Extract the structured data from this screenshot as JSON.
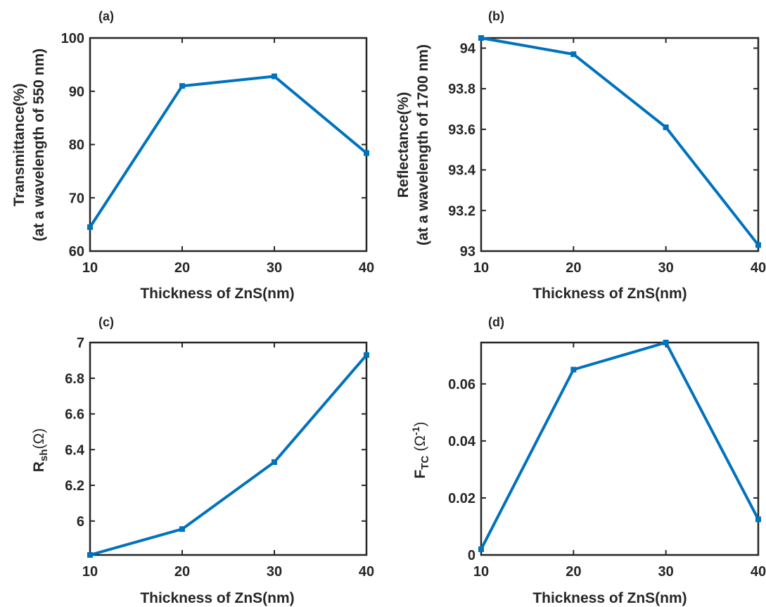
{
  "colors": {
    "series": "#0072BD",
    "axis": "#262626"
  },
  "chart_data": [
    {
      "type": "line",
      "panel_label": "(a)",
      "xlabel": "Thickness of ZnS(nm)",
      "ylabel_lines": [
        "Transmittance(%)",
        "(at a wavelength of 550 nm)"
      ],
      "xlim": [
        10,
        40
      ],
      "ylim": [
        60,
        100
      ],
      "xticks": [
        10,
        20,
        30,
        40
      ],
      "xtick_labels": [
        "10",
        "20",
        "30",
        "40"
      ],
      "yticks": [
        60,
        70,
        80,
        90,
        100
      ],
      "ytick_labels": [
        "60",
        "70",
        "80",
        "90",
        "100"
      ],
      "x": [
        10,
        20,
        30,
        40
      ],
      "series": [
        {
          "values": [
            64.5,
            91.0,
            92.8,
            78.4
          ]
        }
      ]
    },
    {
      "type": "line",
      "panel_label": "(b)",
      "xlabel": "Thickness of ZnS(nm)",
      "ylabel_lines": [
        "Reflectance(%)",
        "(at a wavelength of 1700 nm)"
      ],
      "xlim": [
        10,
        40
      ],
      "ylim": [
        93.0,
        94.05
      ],
      "xticks": [
        10,
        20,
        30,
        40
      ],
      "xtick_labels": [
        "10",
        "20",
        "30",
        "40"
      ],
      "yticks": [
        93.0,
        93.2,
        93.4,
        93.6,
        93.8,
        94.0
      ],
      "ytick_labels": [
        "93",
        "93.2",
        "93.4",
        "93.6",
        "93.8",
        "94"
      ],
      "x": [
        10,
        20,
        30,
        40
      ],
      "series": [
        {
          "values": [
            94.05,
            93.97,
            93.61,
            93.03
          ]
        }
      ]
    },
    {
      "type": "line",
      "panel_label": "(c)",
      "xlabel": "Thickness of ZnS(nm)",
      "ylabel_main": "R",
      "ylabel_sub": "sh",
      "ylabel_unit": "(Ω)",
      "xlim": [
        10,
        40
      ],
      "ylim": [
        5.81,
        7.0
      ],
      "xticks": [
        10,
        20,
        30,
        40
      ],
      "xtick_labels": [
        "10",
        "20",
        "30",
        "40"
      ],
      "yticks": [
        6.0,
        6.2,
        6.4,
        6.6,
        6.8,
        7.0
      ],
      "ytick_labels": [
        "6",
        "6.2",
        "6.4",
        "6.6",
        "6.8",
        "7"
      ],
      "x": [
        10,
        20,
        30,
        40
      ],
      "series": [
        {
          "values": [
            5.81,
            5.955,
            6.33,
            6.93
          ]
        }
      ]
    },
    {
      "type": "line",
      "panel_label": "(d)",
      "xlabel": "Thickness of ZnS(nm)",
      "ylabel_main": "F",
      "ylabel_sub": "TC",
      "ylabel_unit_pre": "(Ω",
      "ylabel_sup": "-1",
      "ylabel_unit_post": ")",
      "xlim": [
        10,
        40
      ],
      "ylim": [
        0,
        0.0745
      ],
      "xticks": [
        10,
        20,
        30,
        40
      ],
      "xtick_labels": [
        "10",
        "20",
        "30",
        "40"
      ],
      "yticks": [
        0,
        0.02,
        0.04,
        0.06
      ],
      "ytick_labels": [
        "0",
        "0.02",
        "0.04",
        "0.06"
      ],
      "x": [
        10,
        20,
        30,
        40
      ],
      "series": [
        {
          "values": [
            0.002,
            0.065,
            0.0745,
            0.0125
          ]
        }
      ]
    }
  ]
}
